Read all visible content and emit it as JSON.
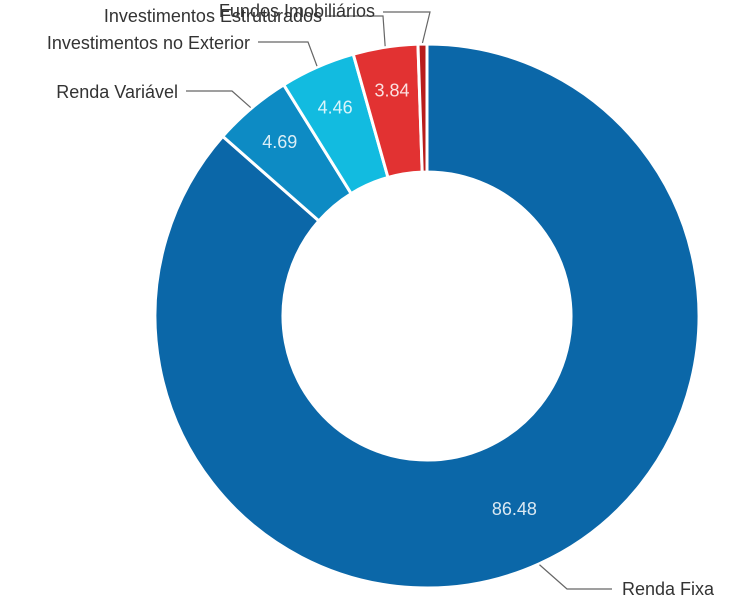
{
  "chart_data": {
    "type": "pie",
    "donut": true,
    "title": "",
    "slices": [
      {
        "label": "Renda Fixa",
        "value": 86.48,
        "value_label": "86.48",
        "color": "#0b67a8"
      },
      {
        "label": "Renda Variável",
        "value": 4.69,
        "value_label": "4.69",
        "color": "#0d8bc4"
      },
      {
        "label": "Investimentos no Exterior",
        "value": 4.46,
        "value_label": "4.46",
        "color": "#12bbe0"
      },
      {
        "label": "Investimentos Estruturados",
        "value": 3.84,
        "value_label": "3.84",
        "color": "#e23232"
      },
      {
        "label": "Fundos Imobiliários",
        "value": 0.53,
        "value_label": "",
        "color": "#b81c1c"
      }
    ]
  }
}
